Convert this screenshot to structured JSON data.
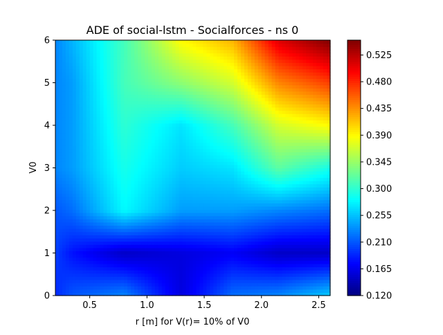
{
  "chart_data": {
    "type": "heatmap",
    "title": "ADE of social-lstm - Socialforces - ns 0",
    "xlabel": "r [m] for V(r)= 10% of V0",
    "ylabel": "V0",
    "xlim": [
      0.2,
      2.6
    ],
    "ylim": [
      0,
      6
    ],
    "x_ticks": [
      0.5,
      1.0,
      1.5,
      2.0,
      2.5
    ],
    "x_tick_labels": [
      "0.5",
      "1.0",
      "1.5",
      "2.0",
      "2.5"
    ],
    "y_ticks": [
      0,
      1,
      2,
      3,
      4,
      5,
      6
    ],
    "y_tick_labels": [
      "0",
      "1",
      "2",
      "3",
      "4",
      "5",
      "6"
    ],
    "colormap": "jet",
    "colorbar": {
      "min": 0.12,
      "max": 0.55,
      "ticks": [
        0.12,
        0.165,
        0.21,
        0.255,
        0.3,
        0.345,
        0.39,
        0.435,
        0.48,
        0.525
      ],
      "tick_labels": [
        "0.120",
        "0.165",
        "0.210",
        "0.255",
        "0.300",
        "0.345",
        "0.390",
        "0.435",
        "0.480",
        "0.525"
      ]
    },
    "x": [
      0.2,
      0.35,
      0.8,
      1.3,
      1.75,
      2.15,
      2.6
    ],
    "y": [
      0,
      1,
      2,
      3,
      4,
      5,
      6
    ],
    "z": [
      [
        0.19,
        0.21,
        0.23,
        0.16,
        0.22,
        0.23,
        0.26
      ],
      [
        0.2,
        0.18,
        0.15,
        0.16,
        0.17,
        0.15,
        0.15
      ],
      [
        0.21,
        0.22,
        0.28,
        0.24,
        0.24,
        0.23,
        0.22
      ],
      [
        0.23,
        0.24,
        0.29,
        0.26,
        0.27,
        0.32,
        0.29
      ],
      [
        0.23,
        0.24,
        0.3,
        0.27,
        0.31,
        0.37,
        0.39
      ],
      [
        0.23,
        0.24,
        0.31,
        0.34,
        0.37,
        0.44,
        0.47
      ],
      [
        0.23,
        0.25,
        0.31,
        0.39,
        0.42,
        0.51,
        0.55
      ]
    ]
  }
}
